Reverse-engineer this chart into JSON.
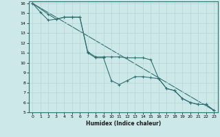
{
  "xlabel": "Humidex (Indice chaleur)",
  "ylabel": "",
  "bg_color": "#cce8e8",
  "grid_color": "#b8d8d8",
  "line_color": "#2e7070",
  "xlim": [
    -0.5,
    23.5
  ],
  "ylim": [
    5,
    16.2
  ],
  "xticks": [
    0,
    1,
    2,
    3,
    4,
    5,
    6,
    7,
    8,
    9,
    10,
    11,
    12,
    13,
    14,
    15,
    16,
    17,
    18,
    19,
    20,
    21,
    22,
    23
  ],
  "yticks": [
    5,
    6,
    7,
    8,
    9,
    10,
    11,
    12,
    13,
    14,
    15,
    16
  ],
  "line1_x": [
    0,
    1,
    2,
    3,
    4,
    5,
    6,
    7,
    8,
    9,
    10,
    11,
    12,
    13,
    14,
    15,
    16,
    17,
    18,
    19,
    20,
    21,
    22,
    23
  ],
  "line1_y": [
    16,
    15.1,
    14.3,
    14.4,
    14.6,
    14.6,
    14.6,
    11.0,
    10.5,
    10.5,
    8.2,
    7.8,
    8.2,
    8.6,
    8.6,
    8.5,
    8.4,
    7.4,
    7.2,
    6.4,
    6.0,
    5.8,
    5.8,
    5.2
  ],
  "line2_x": [
    0,
    2,
    3,
    4,
    5,
    6,
    7,
    8,
    9,
    10,
    11,
    12,
    13,
    14,
    15,
    16,
    17,
    18,
    19,
    20,
    21,
    22,
    23
  ],
  "line2_y": [
    16,
    14.9,
    14.4,
    14.6,
    14.6,
    14.6,
    11.1,
    10.6,
    10.6,
    10.6,
    10.6,
    10.5,
    10.5,
    10.5,
    10.3,
    8.4,
    7.4,
    7.2,
    6.4,
    6.0,
    5.8,
    5.8,
    5.2
  ],
  "line3_x": [
    0,
    23
  ],
  "line3_y": [
    16,
    5.2
  ]
}
